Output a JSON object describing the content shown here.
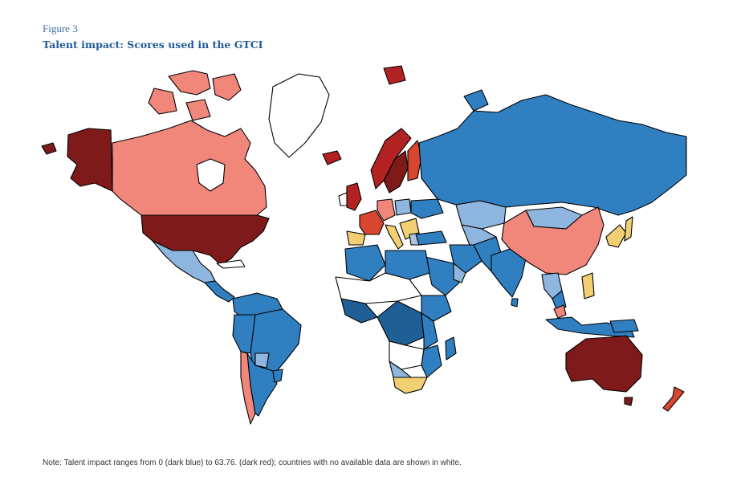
{
  "figure": {
    "label": "Figure 3",
    "title": "Talent impact: Scores used in the GTCI",
    "note": "Note: Talent impact ranges from 0 (dark blue) to 63.76. (dark red); countries with no available data are shown in white."
  },
  "scale": {
    "min": 0,
    "max": 63.76,
    "colors": {
      "dark_red": "#7e1a1a",
      "red": "#d9462f",
      "salmon": "#f0877a",
      "yellow": "#f2cf72",
      "light_blue": "#8fb6de",
      "mid_blue": "#2f7fc1",
      "dark_blue": "#1f5f96",
      "no_data": "#ffffff"
    }
  }
}
